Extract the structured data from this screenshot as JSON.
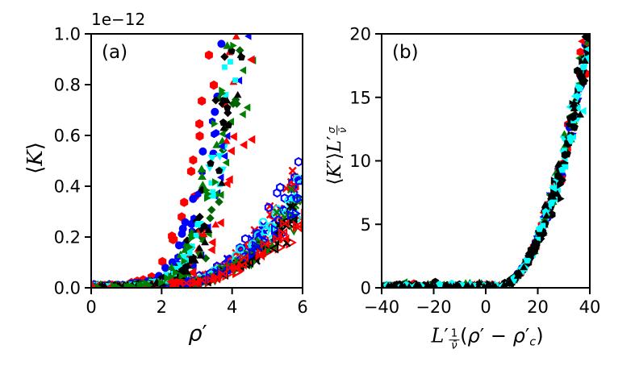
{
  "figure": {
    "panel_a_letter": "(a)",
    "panel_b_letter": "(b)",
    "offset_text": "1e−12",
    "labels": {
      "a_y_open": "⟨",
      "a_y_sym": "K",
      "a_y_close": "⟩",
      "a_x_sym": "ρ",
      "a_x_prime": "′",
      "b_y_open": "⟨",
      "b_y_sym": "K",
      "b_y_prime": "′",
      "b_y_close": "⟩",
      "b_y_L": "L",
      "b_y_L_prime": "′",
      "b_y_exp_num": "σ",
      "b_y_exp_den": "ν̄",
      "b_x_L": "L",
      "b_x_L_prime": "′",
      "b_x_exp_num": "1",
      "b_x_exp_den": "ν̄",
      "b_x_open_paren": "(",
      "b_x_rho1": "ρ",
      "b_x_prime1": "′",
      "b_x_minus": " − ",
      "b_x_rho2": "ρ",
      "b_x_prime2": "′",
      "b_x_sub_c": "c",
      "b_x_close_paren": ")"
    }
  },
  "chart_data": [
    {
      "id": "a",
      "type": "scatter",
      "annotation": "(a)",
      "xlabel": "ρ′",
      "ylabel": "⟨K⟩",
      "offset_text": "1e−12",
      "xlim": [
        0,
        6
      ],
      "ylim": [
        0,
        1.0
      ],
      "y_units": "1e-12",
      "xtick_vals": [
        0,
        2,
        4,
        6
      ],
      "xtick_labels": [
        "0",
        "2",
        "4",
        "6"
      ],
      "ytick_vals": [
        0.0,
        0.2,
        0.4,
        0.6,
        0.8,
        1.0
      ],
      "ytick_labels": [
        "0.0",
        "0.2",
        "0.4",
        "0.6",
        "0.8",
        "1.0"
      ],
      "grid": false,
      "legend": "none",
      "seed": 11,
      "branches": [
        {
          "name": "open-marker-branch",
          "style": "open",
          "kind": "power",
          "onset": 1.7,
          "exponent": 2.4,
          "xmin": 0.1,
          "xmax": 5.95,
          "x_jitter": 0.1,
          "y_rel": 0.1,
          "y_abs": 0.006,
          "series": [
            {
              "color": "#ff0000",
              "marker": "triangle-right",
              "size": 11,
              "amp": 0.26,
              "n": 46
            },
            {
              "color": "#ff0000",
              "marker": "x-cross",
              "size": 9,
              "amp": 0.5,
              "n": 44
            },
            {
              "color": "#0000ff",
              "marker": "x-cross",
              "size": 9,
              "amp": 0.44,
              "n": 44
            },
            {
              "color": "#0000ff",
              "marker": "hexagon",
              "size": 9,
              "amp": 0.47,
              "n": 44
            },
            {
              "color": "#ff0000",
              "marker": "hexagon",
              "size": 9,
              "amp": 0.41,
              "n": 42
            },
            {
              "color": "#00ffff",
              "marker": "circle",
              "size": 9,
              "amp": 0.44,
              "n": 44
            },
            {
              "color": "#0000ff",
              "marker": "pentagon",
              "size": 9,
              "amp": 0.38,
              "n": 42
            },
            {
              "color": "#00ffff",
              "marker": "pentagon",
              "size": 9,
              "amp": 0.35,
              "n": 42
            },
            {
              "color": "#008000",
              "marker": "x-cross",
              "size": 9,
              "amp": 0.36,
              "n": 42
            },
            {
              "color": "#000000",
              "marker": "x-cross",
              "size": 9,
              "amp": 0.33,
              "n": 42
            },
            {
              "color": "#008000",
              "marker": "triangle-down",
              "size": 9,
              "amp": 0.3,
              "n": 42
            },
            {
              "color": "#000000",
              "marker": "triangle-left",
              "size": 9,
              "amp": 0.285,
              "n": 42
            },
            {
              "color": "#0000ff",
              "marker": "triangle-right",
              "size": 9,
              "amp": 0.34,
              "n": 40
            },
            {
              "color": "#ff0000",
              "marker": "bowtie",
              "size": 9,
              "amp": 0.29,
              "n": 40
            }
          ]
        },
        {
          "name": "filled-marker-branch",
          "style": "filled",
          "kind": "anchors",
          "xmin": 0.05,
          "xmax": 5.0,
          "x_jitter": 0.2,
          "y_rel": 0.16,
          "y_abs": 0.004,
          "anchors": [
            [
              0,
              0.002
            ],
            [
              0.6,
              0.003
            ],
            [
              1.2,
              0.006
            ],
            [
              1.7,
              0.012
            ],
            [
              2.1,
              0.03
            ],
            [
              2.5,
              0.07
            ],
            [
              2.8,
              0.14
            ],
            [
              3.1,
              0.26
            ],
            [
              3.4,
              0.44
            ],
            [
              3.7,
              0.66
            ],
            [
              4.0,
              0.92
            ],
            [
              4.3,
              1.25
            ],
            [
              4.7,
              2.0
            ],
            [
              5.0,
              3.0
            ]
          ],
          "series": [
            {
              "color": "#ff0000",
              "marker": "hexagon",
              "size": 11,
              "xshift": -0.55,
              "xj": 0.3,
              "n": 40
            },
            {
              "color": "#0000ff",
              "marker": "circle",
              "size": 10,
              "xshift": -0.3,
              "n": 40
            },
            {
              "color": "#0000ff",
              "marker": "hexagon",
              "size": 9,
              "xshift": -0.2,
              "n": 36
            },
            {
              "color": "#008000",
              "marker": "triangle-up",
              "size": 10,
              "xshift": -0.15,
              "n": 40
            },
            {
              "color": "#006400",
              "marker": "diamond",
              "size": 9,
              "xshift": 0.22,
              "n": 36
            },
            {
              "color": "#000000",
              "marker": "diamond",
              "size": 9,
              "xshift": -0.05,
              "n": 40
            },
            {
              "color": "#00ffff",
              "marker": "triangle-down",
              "size": 10,
              "xshift": 0.0,
              "n": 40
            },
            {
              "color": "#ff0000",
              "marker": "triangle-up",
              "size": 9,
              "xshift": 0.18,
              "n": 36
            },
            {
              "color": "#0000ff",
              "marker": "triangle-left",
              "size": 9,
              "xshift": 0.28,
              "n": 36
            },
            {
              "color": "#008000",
              "marker": "triangle-left",
              "size": 9,
              "xshift": 0.35,
              "n": 36
            },
            {
              "color": "#000000",
              "marker": "pentagon",
              "size": 9,
              "xshift": 0.1,
              "n": 36
            },
            {
              "color": "#00ffff",
              "marker": "square",
              "size": 8,
              "xshift": 0.05,
              "n": 36
            },
            {
              "color": "#ff0000",
              "marker": "triangle-left",
              "size": 10,
              "xshift": 0.52,
              "xj": 0.25,
              "n": 34
            },
            {
              "color": "#000000",
              "marker": "triangle-up",
              "size": 9,
              "xshift": 0.3,
              "n": 34
            },
            {
              "color": "#008000",
              "marker": "triangle-right",
              "size": 9,
              "xshift": 0.0,
              "n": 34
            }
          ]
        }
      ]
    },
    {
      "id": "b",
      "type": "scatter",
      "annotation": "(b)",
      "xlabel": "L′^(1/ν̄)(ρ′ − ρ′c)",
      "ylabel": "⟨K′⟩L′^(σ/ν̄)",
      "xlim": [
        -40,
        40
      ],
      "ylim": [
        0,
        20
      ],
      "xtick_vals": [
        -40,
        -20,
        0,
        20,
        40
      ],
      "xtick_labels": [
        "−40",
        "−20",
        "0",
        "20",
        "40"
      ],
      "ytick_vals": [
        0,
        5,
        10,
        15,
        20
      ],
      "ytick_labels": [
        "0",
        "5",
        "10",
        "15",
        "20"
      ],
      "grid": false,
      "legend": "none",
      "seed": 29,
      "branches": [
        {
          "name": "collapsed-data",
          "style": "filled",
          "kind": "power_abs",
          "xc": 5,
          "coef": 0.0163,
          "exponent": 2,
          "xmin": -40,
          "xmax": 40,
          "x_jitter": 0.9,
          "y_rel": 0.07,
          "y_abs": 0.12,
          "series": [
            {
              "color": "#ff0000",
              "marker": "hexagon",
              "size": 10,
              "n": 60
            },
            {
              "color": "#0000ff",
              "marker": "circle",
              "size": 9,
              "n": 60
            },
            {
              "color": "#008000",
              "marker": "triangle-up",
              "size": 10,
              "n": 60
            },
            {
              "color": "#ff0000",
              "marker": "triangle-left",
              "size": 9,
              "n": 55
            },
            {
              "color": "#0000ff",
              "marker": "triangle-down",
              "size": 9,
              "n": 55
            },
            {
              "color": "#000000",
              "marker": "diamond",
              "size": 10,
              "n": 70
            },
            {
              "color": "#00ffff",
              "marker": "triangle-down",
              "size": 10,
              "n": 60
            },
            {
              "color": "#008000",
              "marker": "triangle-left",
              "size": 9,
              "n": 55
            },
            {
              "color": "#000000",
              "marker": "pentagon",
              "size": 10,
              "n": 70
            },
            {
              "color": "#00ffff",
              "marker": "square",
              "size": 8,
              "n": 55
            },
            {
              "color": "#000000",
              "marker": "triangle-right",
              "size": 9,
              "n": 65
            },
            {
              "color": "#00ffff",
              "marker": "triangle-left",
              "size": 9,
              "n": 50
            },
            {
              "color": "#000000",
              "marker": "hexagon",
              "size": 10,
              "n": 65
            },
            {
              "color": "#00ffff",
              "marker": "pentagon",
              "size": 9,
              "n": 45
            },
            {
              "color": "#000000",
              "marker": "triangle-up",
              "size": 9,
              "n": 60
            }
          ]
        }
      ]
    }
  ]
}
